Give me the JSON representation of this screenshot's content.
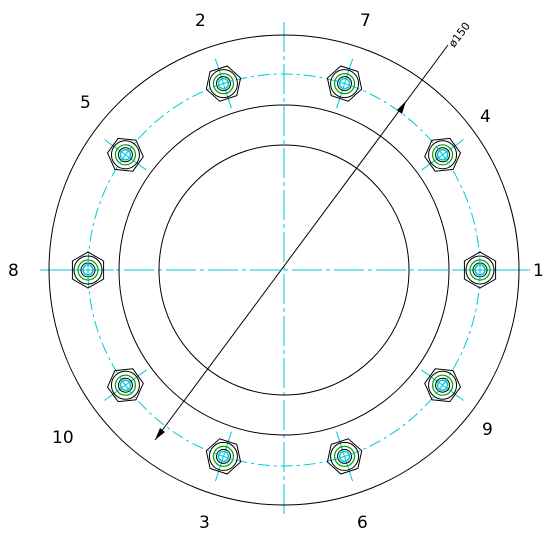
{
  "drawing": {
    "bolt_count": 10,
    "bolt_labels": [
      "1",
      "2",
      "3",
      "4",
      "5",
      "6",
      "7",
      "8",
      "9",
      "10"
    ],
    "bolt_circle_dimension": "ø150",
    "colors": {
      "outline": "#000000",
      "centerline": "#00c8d8",
      "bolt_outline": "#000000",
      "bolt_washer": "#00a000",
      "bolt_center": "#00c8d8"
    }
  }
}
